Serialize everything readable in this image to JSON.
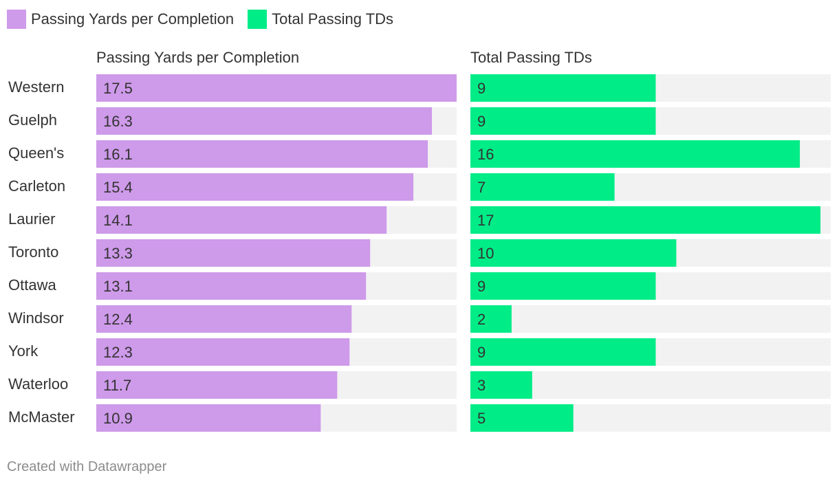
{
  "legend": [
    {
      "label": "Passing Yards per Completion",
      "color": "#ce9aea"
    },
    {
      "label": "Total Passing TDs",
      "color": "#00ec87"
    }
  ],
  "footer": {
    "text": "Created with Datawrapper"
  },
  "colors": {
    "track": "#f2f2f2",
    "text": "#333333"
  },
  "chart_data": {
    "type": "bar",
    "orientation": "horizontal",
    "layout": "split-bars",
    "categories": [
      "Western",
      "Guelph",
      "Queen's",
      "Carleton",
      "Laurier",
      "Toronto",
      "Ottawa",
      "Windsor",
      "York",
      "Waterloo",
      "McMaster"
    ],
    "series": [
      {
        "name": "Passing Yards per Completion",
        "color": "#ce9aea",
        "values": [
          17.5,
          16.3,
          16.1,
          15.4,
          14.1,
          13.3,
          13.1,
          12.4,
          12.3,
          11.7,
          10.9
        ],
        "labels": [
          "17.5",
          "16.3",
          "16.1",
          "15.4",
          "14.1",
          "13.3",
          "13.1",
          "12.4",
          "12.3",
          "11.7",
          "10.9"
        ],
        "xlim": [
          0,
          17.5
        ]
      },
      {
        "name": "Total Passing TDs",
        "color": "#00ec87",
        "values": [
          9,
          9,
          16,
          7,
          17,
          10,
          9,
          2,
          9,
          3,
          5
        ],
        "labels": [
          "9",
          "9",
          "16",
          "7",
          "17",
          "10",
          "9",
          "2",
          "9",
          "3",
          "5"
        ],
        "xlim": [
          0,
          17.5
        ]
      }
    ],
    "legend": "top-left",
    "grid": false
  }
}
